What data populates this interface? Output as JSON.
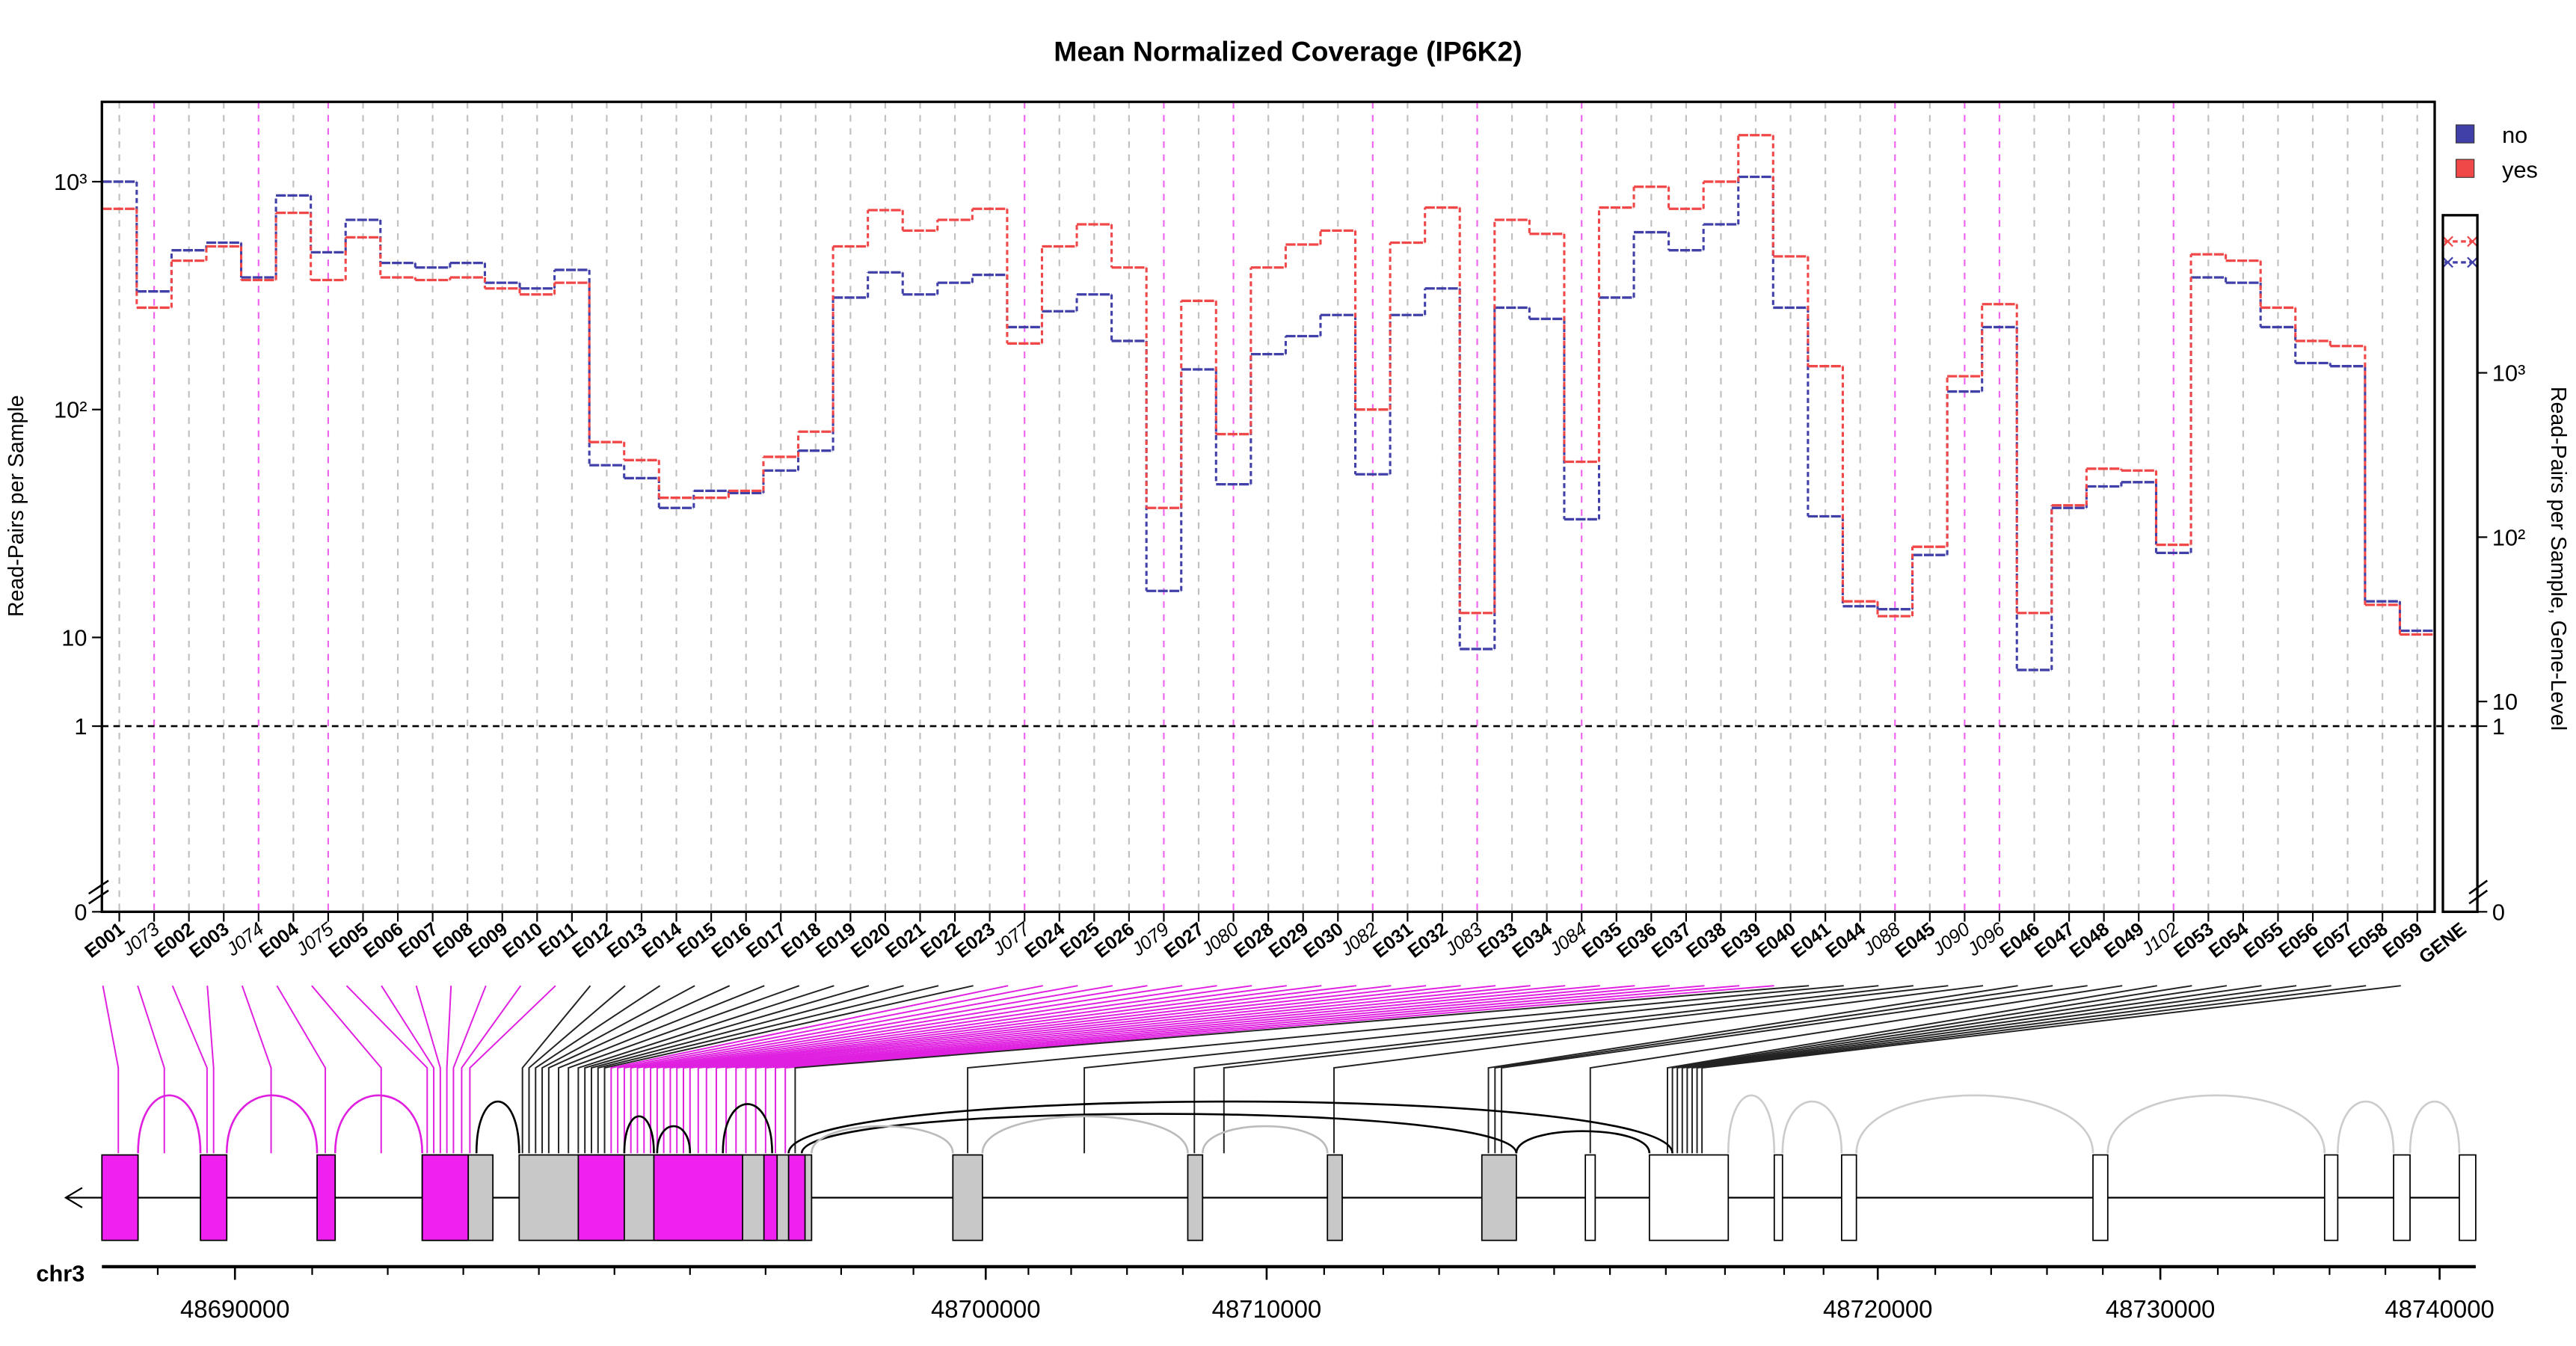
{
  "chart_data": {
    "type": "step",
    "title": "Mean Normalized Coverage (IP6K2)",
    "y_label": "Read-Pairs per Sample",
    "y2_label": "Read-Pairs per Sample, Gene-Level",
    "categories": [
      "E001",
      "J073",
      "E002",
      "E003",
      "J074",
      "E004",
      "J075",
      "E005",
      "E006",
      "E007",
      "E008",
      "E009",
      "E010",
      "E011",
      "E012",
      "E013",
      "E014",
      "E015",
      "E016",
      "E017",
      "E018",
      "E019",
      "E020",
      "E021",
      "E022",
      "E023",
      "J077",
      "E024",
      "E025",
      "E026",
      "J079",
      "E027",
      "J080",
      "E028",
      "E029",
      "E030",
      "J082",
      "E031",
      "E032",
      "J083",
      "E033",
      "E034",
      "J084",
      "E035",
      "E036",
      "E037",
      "E038",
      "E039",
      "E040",
      "E041",
      "E044",
      "J088",
      "E045",
      "J090",
      "J096",
      "E046",
      "E047",
      "E048",
      "E049",
      "J102",
      "E053",
      "E054",
      "E055",
      "E056",
      "E057",
      "E058",
      "E059"
    ],
    "gene_category": "GENE",
    "series": [
      {
        "name": "no",
        "color": "#4040a8",
        "gene_value": 4700,
        "values": [
          1000,
          330,
          500,
          540,
          380,
          870,
          490,
          680,
          440,
          420,
          440,
          360,
          340,
          410,
          57,
          50,
          37,
          44,
          43,
          54,
          66,
          310,
          400,
          320,
          360,
          390,
          230,
          270,
          320,
          200,
          16,
          150,
          47,
          175,
          210,
          260,
          52,
          260,
          340,
          7.4,
          280,
          250,
          33,
          310,
          600,
          500,
          650,
          1050,
          280,
          34,
          13.7,
          13.3,
          23,
          120,
          230,
          4.3,
          37,
          46,
          48,
          23.5,
          380,
          360,
          230,
          160,
          155,
          14.4,
          10.7
        ]
      },
      {
        "name": "yes",
        "color": "#f04848",
        "gene_value": 6300,
        "values": [
          760,
          280,
          450,
          520,
          370,
          730,
          370,
          570,
          380,
          370,
          380,
          340,
          320,
          360,
          72,
          60,
          41,
          41,
          44,
          62,
          80,
          520,
          750,
          610,
          680,
          760,
          195,
          520,
          650,
          420,
          37,
          300,
          78,
          420,
          530,
          610,
          100,
          540,
          770,
          12.8,
          680,
          590,
          59,
          770,
          950,
          760,
          1000,
          1600,
          470,
          155,
          14.4,
          12.4,
          25,
          140,
          290,
          12.8,
          38,
          55,
          54,
          25.5,
          480,
          450,
          280,
          200,
          190,
          13.9,
          10.3
        ]
      }
    ],
    "log_scale": true,
    "ylim": [
      0,
      2240
    ],
    "yticks": [
      0,
      1,
      10,
      {
        "value": 100,
        "label": "10²"
      },
      {
        "value": 1000,
        "label": "10³"
      }
    ],
    "y2lim": [
      0,
      9100
    ],
    "y2ticks": [
      0,
      1,
      10,
      {
        "value": 100,
        "label": "10²"
      },
      {
        "value": 1000,
        "label": "10³"
      }
    ],
    "hline": 1,
    "legend": "top-right",
    "genome_axis": {
      "label": "chr3",
      "ticks": [
        48690000,
        48700000,
        48710000,
        48720000,
        48730000,
        48740000
      ]
    }
  }
}
